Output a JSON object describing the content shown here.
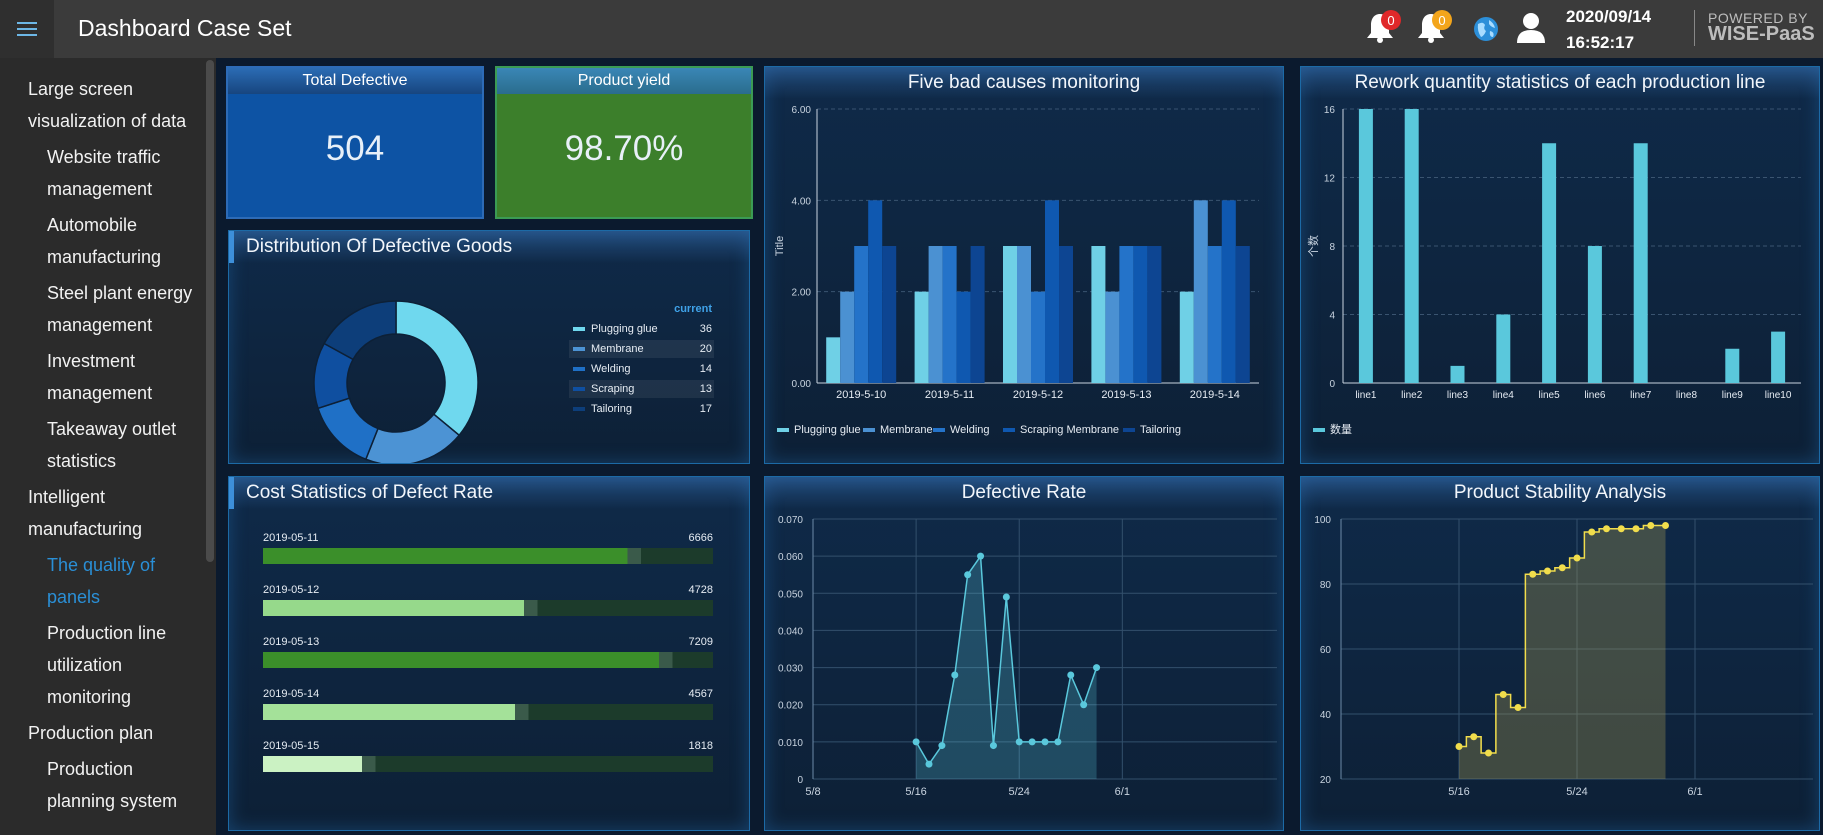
{
  "header": {
    "title": "Dashboard Case Set",
    "alert_count_1": "0",
    "alert_count_2": "0",
    "date": "2020/09/14",
    "time": "16:52:17",
    "brand_top": "POWERED BY",
    "brand_bottom": "WISE-PaaS"
  },
  "sidebar": {
    "items": [
      {
        "label": "Large screen visualization of data",
        "level": 1,
        "active": false
      },
      {
        "label": "Website traffic management",
        "level": 2,
        "active": false
      },
      {
        "label": "Automobile manufacturing",
        "level": 2,
        "active": false
      },
      {
        "label": "Steel plant energy management",
        "level": 2,
        "active": false
      },
      {
        "label": "Investment management",
        "level": 2,
        "active": false
      },
      {
        "label": "Takeaway outlet statistics",
        "level": 2,
        "active": false
      },
      {
        "label": "Intelligent manufacturing",
        "level": 1,
        "active": false
      },
      {
        "label": "The quality of panels",
        "level": 2,
        "active": true
      },
      {
        "label": "Production line utilization monitoring",
        "level": 2,
        "active": false
      },
      {
        "label": "Production plan",
        "level": 1,
        "active": false
      },
      {
        "label": "Production planning system",
        "level": 2,
        "active": false
      }
    ]
  },
  "kpis": {
    "defective": {
      "label": "Total Defective",
      "value": "504",
      "color": "#0d53a4"
    },
    "yield": {
      "label": "Product yield",
      "value": "98.70%",
      "color": "#3c7f2b"
    }
  },
  "panels": {
    "distribution_title": "Distribution Of Defective Goods",
    "causes_title": "Five bad causes monitoring",
    "rework_title": "Rework quantity statistics of each production line",
    "cost_title": "Cost Statistics of Defect Rate",
    "rate_title": "Defective Rate",
    "stability_title": "Product Stability Analysis"
  },
  "chart_data": [
    {
      "id": "distribution",
      "type": "pie",
      "legend_header": "current",
      "categories": [
        "Plugging glue",
        "Membrane",
        "Welding",
        "Scraping",
        "Tailoring"
      ],
      "values": [
        36,
        20,
        14,
        13,
        17
      ],
      "colors": [
        "#6fd8ee",
        "#4c93d4",
        "#1f70c6",
        "#0f4fa0",
        "#0d3e7a"
      ]
    },
    {
      "id": "causes",
      "type": "bar",
      "categories": [
        "2019-5-10",
        "2019-5-11",
        "2019-5-12",
        "2019-5-13",
        "2019-5-14"
      ],
      "series": [
        {
          "name": "Plugging glue",
          "values": [
            1,
            2,
            3,
            3,
            2
          ],
          "color": "#6fd0e6"
        },
        {
          "name": "Membrane",
          "values": [
            2,
            3,
            3,
            2,
            4
          ],
          "color": "#4b91d2"
        },
        {
          "name": "Welding",
          "values": [
            3,
            3,
            2,
            3,
            3
          ],
          "color": "#2473c9"
        },
        {
          "name": "Scraping Membrane",
          "values": [
            4,
            2,
            4,
            3,
            4
          ],
          "color": "#0f58b0"
        },
        {
          "name": "Tailoring",
          "values": [
            3,
            3,
            3,
            3,
            3
          ],
          "color": "#0d4592"
        }
      ],
      "ylabel": "Title",
      "ylim": [
        0,
        6
      ],
      "yticks": [
        "0.00",
        "2.00",
        "4.00",
        "6.00"
      ]
    },
    {
      "id": "rework",
      "type": "bar",
      "categories": [
        "line1",
        "line2",
        "line3",
        "line4",
        "line5",
        "line6",
        "line7",
        "line8",
        "line9",
        "line10"
      ],
      "series": [
        {
          "name": "数量",
          "values": [
            16,
            16,
            1,
            4,
            14,
            8,
            14,
            0,
            2,
            3
          ],
          "color": "#5ac8dc"
        }
      ],
      "ylabel": "个数",
      "ylim": [
        0,
        16
      ],
      "yticks": [
        "0",
        "4",
        "8",
        "12",
        "16"
      ]
    },
    {
      "id": "cost",
      "type": "bar",
      "categories": [
        "2019-05-11",
        "2019-05-12",
        "2019-05-13",
        "2019-05-14",
        "2019-05-15"
      ],
      "values": [
        6666,
        4728,
        7209,
        4567,
        1818
      ],
      "value_labels": [
        "6666",
        "4728",
        "7209",
        "4567",
        "1818"
      ],
      "fractions": [
        0.81,
        0.58,
        0.88,
        0.56,
        0.22
      ],
      "colors": [
        "#3b8f2a",
        "#96d98b",
        "#3b8f2a",
        "#a4e199",
        "#cbf2c3"
      ]
    },
    {
      "id": "rate",
      "type": "area",
      "series": [
        {
          "name": "Rate",
          "color": "#5ac8dc",
          "x": [
            "2019-05-16",
            "2019-05-17",
            "2019-05-18",
            "2019-05-19",
            "2019-05-20",
            "2019-05-21",
            "2019-05-22",
            "2019-05-23",
            "2019-05-24",
            "2019-05-25",
            "2019-05-26",
            "2019-05-27",
            "2019-05-28",
            "2019-05-29",
            "2019-05-30"
          ],
          "values": [
            0.01,
            0.004,
            0.009,
            0.028,
            0.055,
            0.06,
            0.009,
            0.049,
            0.01,
            0.01,
            0.01,
            0.01,
            0.028,
            0.02,
            0.03
          ]
        }
      ],
      "xticks": [
        "5/8",
        "5/16",
        "5/24",
        "6/1"
      ],
      "ylim": [
        0,
        0.07
      ],
      "yticks": [
        "0",
        "0.010",
        "0.020",
        "0.030",
        "0.040",
        "0.050",
        "0.060",
        "0.070"
      ],
      "grid": true
    },
    {
      "id": "stability",
      "type": "area",
      "series": [
        {
          "name": "stability",
          "color": "#f1dd4c",
          "x": [
            "2019-05-16",
            "2019-05-17",
            "2019-05-18",
            "2019-05-19",
            "2019-05-20",
            "2019-05-21",
            "2019-05-22",
            "2019-05-23",
            "2019-05-24",
            "2019-05-25",
            "2019-05-26",
            "2019-05-27",
            "2019-05-28",
            "2019-05-29",
            "2019-05-30"
          ],
          "values": [
            30,
            33,
            28,
            46,
            42,
            83,
            84,
            85,
            88,
            96,
            97,
            97,
            97,
            98,
            98
          ]
        }
      ],
      "xticks": [
        "5/16",
        "5/24",
        "6/1"
      ],
      "ylim": [
        20,
        100
      ],
      "yticks": [
        "20",
        "40",
        "60",
        "80",
        "100"
      ],
      "grid": true
    }
  ]
}
